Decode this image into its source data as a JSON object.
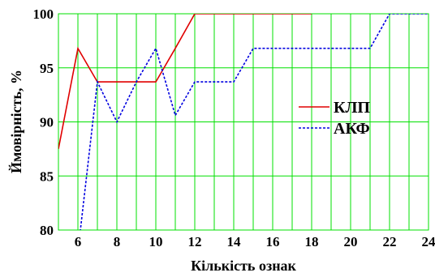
{
  "chart_data": {
    "type": "line",
    "xlabel": "Кількість ознак",
    "ylabel": "Ймовірність, %",
    "xlim": [
      5,
      24
    ],
    "ylim": [
      80,
      100
    ],
    "x_ticks": [
      6,
      8,
      10,
      12,
      14,
      16,
      18,
      20,
      22,
      24
    ],
    "y_ticks": [
      80,
      85,
      90,
      95,
      100
    ],
    "grid": true,
    "grid_color": "#00e000",
    "legend_position": "right-middle",
    "series": [
      {
        "name": "КЛП",
        "color": "#e00000",
        "style": "solid",
        "x": [
          5,
          6,
          7,
          8,
          9,
          10,
          11,
          12,
          13,
          14,
          15,
          16,
          17,
          18
        ],
        "y": [
          87.5,
          96.8,
          93.7,
          93.7,
          93.7,
          93.7,
          96.8,
          100,
          100,
          100,
          100,
          100,
          100,
          100
        ]
      },
      {
        "name": "АКФ",
        "color": "#0000e0",
        "style": "dotted",
        "x": [
          6,
          7,
          8,
          9,
          10,
          11,
          12,
          13,
          14,
          15,
          16,
          17,
          18,
          19,
          20,
          21,
          22,
          23,
          24
        ],
        "y": [
          78,
          93.7,
          90,
          93.7,
          96.8,
          90.6,
          93.7,
          93.7,
          93.7,
          96.8,
          96.8,
          96.8,
          96.8,
          96.8,
          96.8,
          96.8,
          100,
          100,
          100
        ]
      }
    ]
  }
}
